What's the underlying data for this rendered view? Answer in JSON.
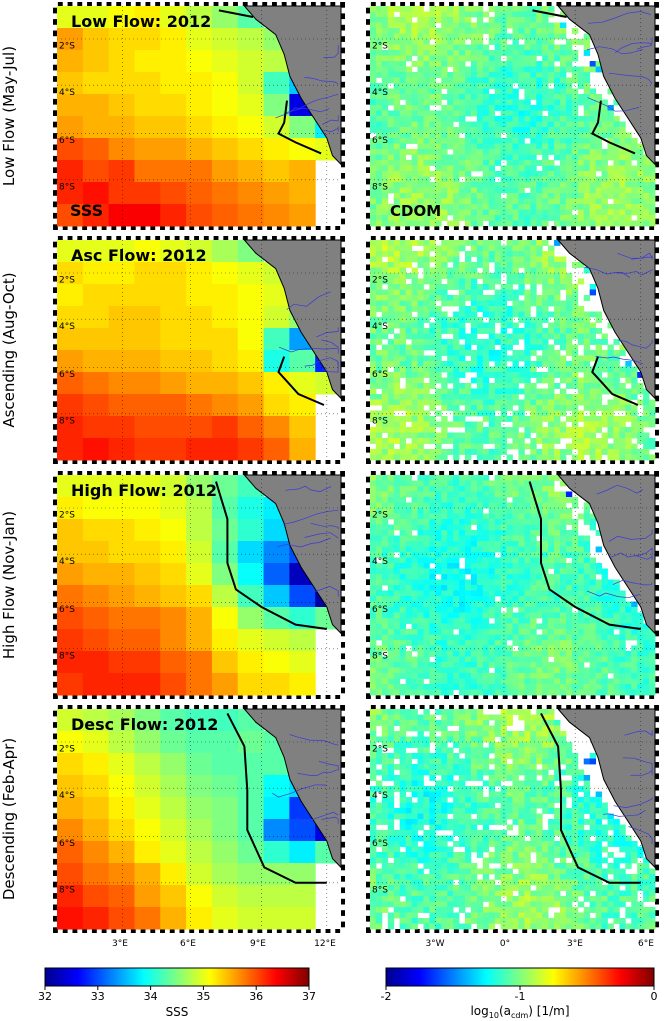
{
  "chart_data": {
    "type": "heatmap",
    "panel_rows": [
      {
        "row_label": "Low Flow (May-Jul)",
        "title": "Low Flow: 2012",
        "sss_tag": "SSS",
        "cdom_tag": "CDOM"
      },
      {
        "row_label": "Ascending (Aug-Oct)",
        "title": "Asc Flow: 2012",
        "sss_tag": "",
        "cdom_tag": ""
      },
      {
        "row_label": "High Flow (Nov-Jan)",
        "title": "High Flow: 2012",
        "sss_tag": "",
        "cdom_tag": ""
      },
      {
        "row_label": "Descending (Feb-Apr)",
        "title": "Desc Flow: 2012",
        "sss_tag": "",
        "cdom_tag": ""
      }
    ],
    "sss_axis": {
      "lat_ticks": [
        "2°S",
        "4°S",
        "6°S",
        "8°S"
      ],
      "lon_ticks": [
        "3°E",
        "6°E",
        "9°E",
        "12°E"
      ]
    },
    "cdom_axis": {
      "lat_ticks": [
        "2°S",
        "4°S",
        "6°S",
        "8°S"
      ],
      "lon_ticks": [
        "3°W",
        "0°",
        "3°E",
        "6°E"
      ]
    },
    "sss_colorbar": {
      "label": "SSS",
      "ticks": [
        "32",
        "33",
        "34",
        "35",
        "36",
        "37"
      ],
      "range": [
        32,
        37
      ]
    },
    "cdom_colorbar": {
      "label_main": "log",
      "label_sub1": "10",
      "label_mid": "(a",
      "label_sub2": "cdm",
      "label_end": ") [1/m]",
      "ticks": [
        "-2",
        "-1",
        "0"
      ],
      "range": [
        -2,
        0
      ]
    },
    "sss_grid": [
      [
        [
          35.0,
          35.0,
          35.1,
          35.2,
          35.0,
          34.8,
          34.6,
          34.3,
          0,
          0,
          0
        ],
        [
          35.6,
          35.4,
          35.3,
          35.3,
          35.2,
          35.0,
          34.9,
          34.8,
          34.6,
          0,
          0
        ],
        [
          35.5,
          35.4,
          35.3,
          35.2,
          35.2,
          35.1,
          35.0,
          34.9,
          34.8,
          0,
          0
        ],
        [
          35.4,
          35.3,
          35.3,
          35.3,
          35.2,
          35.2,
          35.1,
          34.9,
          34.2,
          33.6,
          0
        ],
        [
          35.5,
          35.5,
          35.4,
          35.3,
          35.3,
          35.2,
          35.1,
          35.0,
          34.5,
          32.5,
          0
        ],
        [
          35.6,
          35.5,
          35.5,
          35.4,
          35.4,
          35.3,
          35.2,
          35.1,
          34.9,
          34.5,
          33.8
        ],
        [
          36.0,
          35.9,
          35.7,
          35.6,
          35.6,
          35.5,
          35.4,
          35.3,
          35.2,
          35.1,
          35.0
        ],
        [
          36.2,
          36.0,
          36.1,
          35.8,
          35.8,
          35.8,
          35.6,
          35.5,
          35.4,
          35.5,
          0
        ],
        [
          36.2,
          36.3,
          36.1,
          36.1,
          36.0,
          35.9,
          35.8,
          35.7,
          35.6,
          35.5,
          0
        ],
        [
          36.0,
          36.2,
          36.4,
          36.4,
          36.2,
          36.0,
          35.9,
          35.8,
          35.7,
          35.6,
          0
        ]
      ],
      [
        [
          35.0,
          35.0,
          35.0,
          35.1,
          35.0,
          34.9,
          34.7,
          34.5,
          0,
          0,
          0
        ],
        [
          35.3,
          35.2,
          35.2,
          35.3,
          35.3,
          35.2,
          35.1,
          35.0,
          34.9,
          0,
          0
        ],
        [
          35.2,
          35.3,
          35.3,
          35.3,
          35.3,
          35.2,
          35.2,
          35.1,
          35.0,
          0,
          0
        ],
        [
          35.3,
          35.3,
          35.4,
          35.4,
          35.3,
          35.3,
          35.2,
          35.1,
          34.9,
          34.6,
          0
        ],
        [
          35.4,
          35.4,
          35.4,
          35.4,
          35.3,
          35.3,
          35.3,
          35.1,
          34.2,
          33.4,
          0
        ],
        [
          35.6,
          35.5,
          35.5,
          35.5,
          35.4,
          35.4,
          35.3,
          35.2,
          34.0,
          34.3,
          32.8
        ],
        [
          35.9,
          35.8,
          35.7,
          35.7,
          35.6,
          35.5,
          35.5,
          35.4,
          35.2,
          35.0,
          34.9
        ],
        [
          36.1,
          36.0,
          35.9,
          35.9,
          35.9,
          35.8,
          35.7,
          35.6,
          35.3,
          35.2,
          0
        ],
        [
          36.2,
          36.1,
          36.1,
          36.0,
          36.0,
          36.0,
          36.1,
          35.9,
          35.7,
          35.4,
          0
        ],
        [
          36.2,
          36.3,
          36.2,
          36.1,
          36.1,
          36.2,
          36.2,
          36.1,
          35.9,
          35.5,
          0
        ]
      ],
      [
        [
          35.0,
          35.0,
          35.0,
          35.0,
          34.9,
          34.6,
          34.4,
          34.2,
          0,
          0,
          0
        ],
        [
          35.2,
          35.1,
          35.1,
          35.1,
          35.0,
          34.8,
          34.3,
          34.0,
          33.8,
          0,
          0
        ],
        [
          35.4,
          35.3,
          35.3,
          35.2,
          35.1,
          34.8,
          34.4,
          34.1,
          33.7,
          0,
          0
        ],
        [
          35.4,
          35.4,
          35.3,
          35.3,
          35.2,
          34.9,
          34.3,
          33.7,
          33.3,
          33.0,
          0
        ],
        [
          35.6,
          35.5,
          35.5,
          35.4,
          35.3,
          35.0,
          34.5,
          33.9,
          33.1,
          32.3,
          0
        ],
        [
          35.8,
          35.7,
          35.6,
          35.5,
          35.4,
          35.3,
          34.8,
          34.2,
          33.6,
          33.0,
          32.2
        ],
        [
          36.0,
          35.9,
          35.8,
          35.8,
          35.7,
          35.5,
          35.1,
          34.6,
          34.3,
          34.1,
          34.4
        ],
        [
          36.1,
          36.0,
          35.9,
          35.9,
          35.7,
          35.5,
          35.2,
          35.0,
          34.9,
          34.8,
          0
        ],
        [
          36.2,
          36.2,
          36.1,
          36.1,
          35.9,
          35.8,
          35.4,
          35.2,
          35.1,
          35.0,
          0
        ],
        [
          36.1,
          36.2,
          36.2,
          36.2,
          36.0,
          35.8,
          35.6,
          35.3,
          35.3,
          35.2,
          0
        ]
      ],
      [
        [
          34.9,
          34.8,
          34.7,
          34.5,
          34.3,
          34.2,
          34.2,
          34.3,
          0,
          0,
          0
        ],
        [
          35.1,
          35.0,
          34.8,
          34.6,
          34.4,
          34.3,
          34.3,
          34.4,
          34.3,
          0,
          0
        ],
        [
          35.3,
          35.2,
          35.0,
          34.8,
          34.6,
          34.4,
          34.3,
          34.3,
          34.3,
          0,
          0
        ],
        [
          35.4,
          35.3,
          35.1,
          34.9,
          34.7,
          34.5,
          34.4,
          34.3,
          33.9,
          33.7,
          0
        ],
        [
          35.5,
          35.4,
          35.2,
          35.0,
          34.8,
          34.6,
          34.5,
          34.3,
          33.8,
          32.9,
          0
        ],
        [
          35.7,
          35.5,
          35.3,
          35.1,
          34.9,
          34.7,
          34.5,
          34.3,
          33.3,
          33.0,
          32.5
        ],
        [
          35.9,
          35.7,
          35.5,
          35.2,
          35.0,
          34.8,
          34.6,
          34.4,
          34.1,
          33.8,
          34.3
        ],
        [
          36.0,
          35.8,
          35.7,
          35.5,
          35.2,
          34.9,
          34.7,
          34.6,
          34.6,
          34.6,
          0
        ],
        [
          36.2,
          36.0,
          35.9,
          35.6,
          35.4,
          35.1,
          34.9,
          34.8,
          34.8,
          34.8,
          0
        ],
        [
          36.3,
          36.2,
          36.0,
          35.8,
          35.5,
          35.2,
          35.0,
          34.9,
          34.9,
          34.9,
          0
        ]
      ]
    ],
    "cdom_fields": [
      {
        "mean": -1.72,
        "amplitude": 0.18,
        "gaps": 0.06,
        "coastal_gap": 0.35
      },
      {
        "mean": -1.72,
        "amplitude": 0.2,
        "gaps": 0.14,
        "coastal_gap": 0.45
      },
      {
        "mean": -1.82,
        "amplitude": 0.17,
        "gaps": 0.03,
        "coastal_gap": 0.3
      },
      {
        "mean": -1.75,
        "amplitude": 0.2,
        "gaps": 0.12,
        "coastal_gap": 0.8
      }
    ],
    "front_lines": [
      [
        [
          [
            0.57,
            0.02
          ],
          [
            0.69,
            0.05
          ]
        ],
        [
          [
            0.81,
            0.43
          ],
          [
            0.8,
            0.53
          ],
          [
            0.78,
            0.58
          ],
          [
            0.84,
            0.62
          ],
          [
            0.93,
            0.67
          ]
        ]
      ],
      [
        [
          [
            0.8,
            0.53
          ],
          [
            0.78,
            0.6
          ],
          [
            0.85,
            0.7
          ],
          [
            0.94,
            0.75
          ]
        ]
      ],
      [
        [
          [
            0.56,
            0.03
          ],
          [
            0.6,
            0.2
          ],
          [
            0.6,
            0.4
          ],
          [
            0.63,
            0.52
          ],
          [
            0.72,
            0.6
          ],
          [
            0.84,
            0.68
          ],
          [
            0.95,
            0.7
          ]
        ]
      ],
      [
        [
          [
            0.6,
            0.02
          ],
          [
            0.66,
            0.17
          ],
          [
            0.67,
            0.37
          ],
          [
            0.67,
            0.55
          ],
          [
            0.73,
            0.72
          ],
          [
            0.84,
            0.79
          ],
          [
            0.95,
            0.79
          ]
        ]
      ]
    ]
  }
}
